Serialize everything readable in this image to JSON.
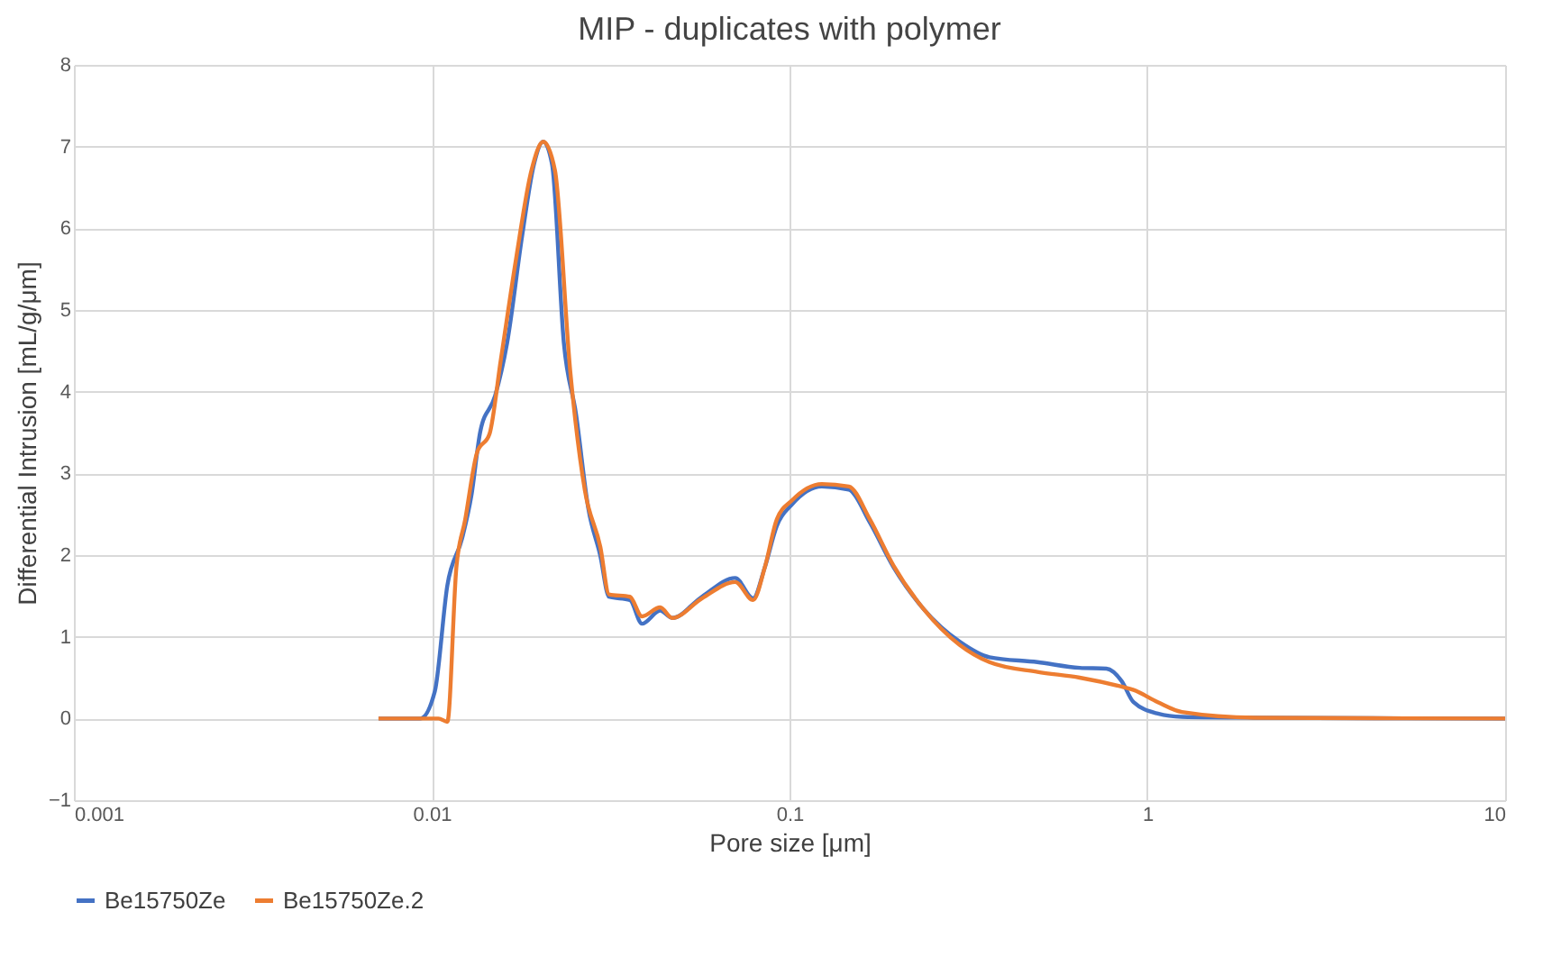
{
  "chart_data": {
    "type": "line",
    "title": "MIP - duplicates with polymer",
    "xlabel": "Pore size [μm]",
    "ylabel": "Differential Intrusion [mL/g/μm]",
    "xlim": [
      0.001,
      10
    ],
    "xticks": [
      0.001,
      0.01,
      0.1,
      1,
      10
    ],
    "ylim": [
      -1,
      8
    ],
    "yticks": [
      -1,
      0,
      1,
      2,
      3,
      4,
      5,
      6,
      7,
      8
    ],
    "log": "x",
    "grid": true,
    "legend": "bottom",
    "marker": "none",
    "line_style": "solid",
    "series": [
      {
        "name": "Be15750Ze",
        "color": "#4472c4",
        "x": [
          0.0071,
          0.0093,
          0.0102,
          0.01106,
          0.01217,
          0.0129,
          0.01368,
          0.01504,
          0.01625,
          0.0179,
          0.0193,
          0.0205,
          0.0217,
          0.0234,
          0.0253,
          0.0274,
          0.0296,
          0.0313,
          0.0358,
          0.0387,
          0.0435,
          0.047,
          0.0569,
          0.0705,
          0.0791,
          0.0853,
          0.0922,
          0.1016,
          0.1231,
          0.1465,
          0.1676,
          0.1954,
          0.237,
          0.299,
          0.362,
          0.493,
          0.647,
          0.769,
          0.847,
          0.915,
          1.07,
          1.25,
          2,
          10
        ],
        "values": [
          0,
          0,
          0.33,
          1.63,
          2.21,
          2.72,
          3.52,
          3.95,
          4.6,
          5.91,
          6.78,
          7.06,
          6.78,
          4.6,
          3.73,
          2.57,
          1.99,
          1.49,
          1.45,
          1.16,
          1.32,
          1.23,
          1.49,
          1.72,
          1.47,
          1.85,
          2.36,
          2.62,
          2.84,
          2.8,
          2.4,
          1.85,
          1.34,
          0.94,
          0.75,
          0.69,
          0.62,
          0.61,
          0.46,
          0.2,
          0.06,
          0.02,
          0.01,
          0
        ]
      },
      {
        "name": "Be15750Ze.2",
        "color": "#ed7d31",
        "x": [
          0.0071,
          0.01045,
          0.01106,
          0.01172,
          0.0124,
          0.0134,
          0.0145,
          0.0156,
          0.0172,
          0.019,
          0.0205,
          0.0221,
          0.0244,
          0.0268,
          0.0296,
          0.0313,
          0.0358,
          0.0387,
          0.0435,
          0.047,
          0.0569,
          0.0705,
          0.0791,
          0.0853,
          0.0922,
          0.1016,
          0.1231,
          0.1465,
          0.1676,
          0.1954,
          0.237,
          0.299,
          0.362,
          0.493,
          0.647,
          0.847,
          0.915,
          1.07,
          1.25,
          2,
          10
        ],
        "values": [
          0,
          0,
          -0.04,
          1.85,
          2.43,
          3.26,
          3.48,
          4.39,
          5.62,
          6.71,
          7.06,
          6.71,
          4.24,
          2.79,
          2.1,
          1.52,
          1.49,
          1.25,
          1.36,
          1.23,
          1.47,
          1.67,
          1.45,
          1.85,
          2.44,
          2.67,
          2.87,
          2.84,
          2.44,
          1.87,
          1.34,
          0.9,
          0.69,
          0.57,
          0.5,
          0.39,
          0.35,
          0.2,
          0.08,
          0.01,
          0
        ]
      }
    ]
  }
}
